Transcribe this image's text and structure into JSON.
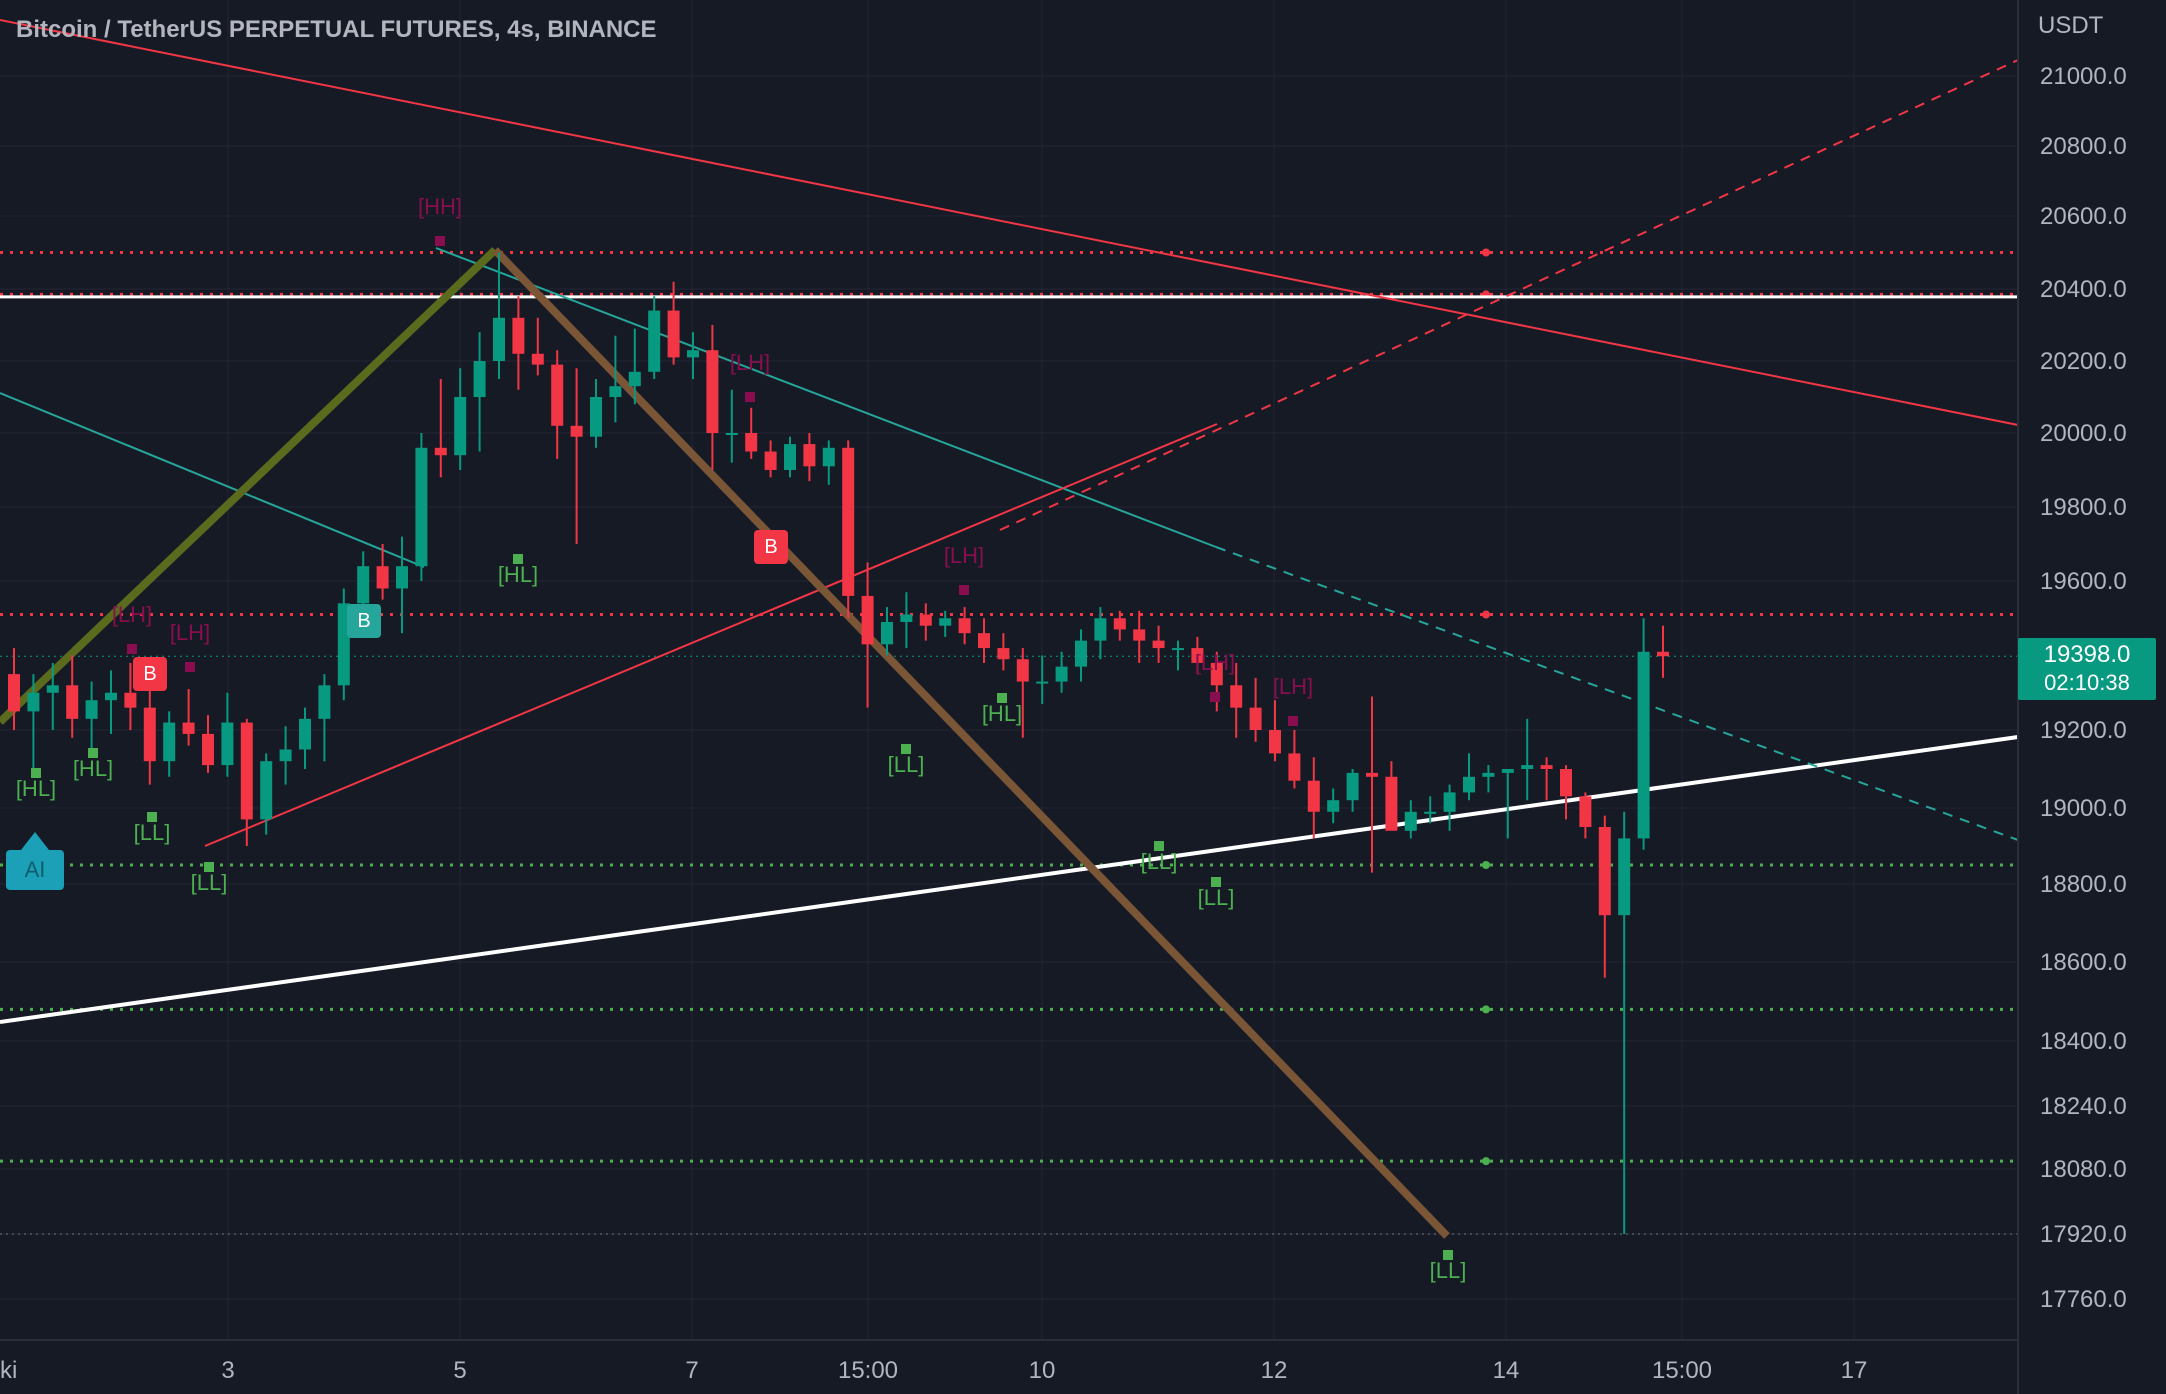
{
  "header": {
    "title": "Bitcoin / TetherUS PERPETUAL FUTURES, 4s, BINANCE",
    "unit": "USDT"
  },
  "price_tag": {
    "price": "19398.0",
    "countdown": "02:10:38"
  },
  "ai_badge": {
    "label": "AI"
  },
  "signals": [
    {
      "label": "B",
      "color": "#f23645"
    },
    {
      "label": "B",
      "color": "#f23645"
    },
    {
      "label": "B",
      "color": "#26a69a"
    }
  ],
  "colors": {
    "up": "#089981",
    "down": "#f23645",
    "background": "#161a25",
    "grid": "#242733",
    "text": "#b2b5be"
  },
  "chart_data": {
    "type": "candlestick",
    "title": "Bitcoin / TetherUS PERPETUAL FUTURES, 4s, BINANCE",
    "y_axis": {
      "label": "USDT",
      "ticks": [
        "21000.0",
        "20800.0",
        "20600.0",
        "20400.0",
        "20200.0",
        "20000.0",
        "19800.0",
        "19600.0",
        "19200.0",
        "19000.0",
        "18800.0",
        "18600.0",
        "18400.0",
        "18240.0",
        "18080.0",
        "17920.0",
        "17760.0"
      ]
    },
    "x_axis": {
      "ticks": [
        "ki",
        "3",
        "5",
        "7",
        "15:00",
        "10",
        "12",
        "14",
        "15:00",
        "17"
      ]
    },
    "last_price": 19398.0,
    "horizontal_levels": [
      {
        "value": 20500,
        "color": "#f23645",
        "style": "dotted"
      },
      {
        "value": 20385,
        "color": "#f23645",
        "style": "dotted"
      },
      {
        "value": 20378,
        "color": "#ffffff",
        "style": "solid"
      },
      {
        "value": 19510,
        "color": "#f23645",
        "style": "dotted"
      },
      {
        "value": 18850,
        "color": "#4caf50",
        "style": "dotted"
      },
      {
        "value": 18480,
        "color": "#4caf50",
        "style": "dotted"
      },
      {
        "value": 18100,
        "color": "#4caf50",
        "style": "dotted"
      }
    ],
    "pivot_labels": [
      {
        "text": "[HH]",
        "kind": "high"
      },
      {
        "text": "[LH]",
        "kind": "high"
      },
      {
        "text": "[LH]",
        "kind": "high"
      },
      {
        "text": "[LH]",
        "kind": "high"
      },
      {
        "text": "[LH]",
        "kind": "high"
      },
      {
        "text": "[LH]",
        "kind": "high"
      },
      {
        "text": "[LH]",
        "kind": "high"
      },
      {
        "text": "[HL]",
        "kind": "low"
      },
      {
        "text": "[HL]",
        "kind": "low"
      },
      {
        "text": "[HL]",
        "kind": "low"
      },
      {
        "text": "[HL]",
        "kind": "low"
      },
      {
        "text": "[LL]",
        "kind": "low"
      },
      {
        "text": "[LL]",
        "kind": "low"
      },
      {
        "text": "[LL]",
        "kind": "low"
      },
      {
        "text": "[LL]",
        "kind": "low"
      },
      {
        "text": "[LL]",
        "kind": "low"
      },
      {
        "text": "[LL]",
        "kind": "low"
      }
    ],
    "candles": [
      {
        "o": 19350,
        "h": 19420,
        "l": 19200,
        "c": 19250
      },
      {
        "o": 19250,
        "h": 19350,
        "l": 19080,
        "c": 19300
      },
      {
        "o": 19300,
        "h": 19380,
        "l": 19200,
        "c": 19320
      },
      {
        "o": 19320,
        "h": 19400,
        "l": 19180,
        "c": 19230
      },
      {
        "o": 19230,
        "h": 19330,
        "l": 19150,
        "c": 19280
      },
      {
        "o": 19280,
        "h": 19360,
        "l": 19190,
        "c": 19300
      },
      {
        "o": 19300,
        "h": 19380,
        "l": 19200,
        "c": 19260
      },
      {
        "o": 19260,
        "h": 19350,
        "l": 19060,
        "c": 19120
      },
      {
        "o": 19120,
        "h": 19250,
        "l": 19080,
        "c": 19220
      },
      {
        "o": 19220,
        "h": 19310,
        "l": 19160,
        "c": 19190
      },
      {
        "o": 19190,
        "h": 19240,
        "l": 19090,
        "c": 19110
      },
      {
        "o": 19110,
        "h": 19300,
        "l": 19080,
        "c": 19220
      },
      {
        "o": 19220,
        "h": 19230,
        "l": 18900,
        "c": 18970
      },
      {
        "o": 18970,
        "h": 19140,
        "l": 18930,
        "c": 19120
      },
      {
        "o": 19120,
        "h": 19210,
        "l": 19060,
        "c": 19150
      },
      {
        "o": 19150,
        "h": 19260,
        "l": 19100,
        "c": 19230
      },
      {
        "o": 19230,
        "h": 19350,
        "l": 19120,
        "c": 19320
      },
      {
        "o": 19320,
        "h": 19580,
        "l": 19280,
        "c": 19540
      },
      {
        "o": 19540,
        "h": 19680,
        "l": 19500,
        "c": 19640
      },
      {
        "o": 19640,
        "h": 19700,
        "l": 19550,
        "c": 19580
      },
      {
        "o": 19580,
        "h": 19720,
        "l": 19460,
        "c": 19640
      },
      {
        "o": 19640,
        "h": 20000,
        "l": 19600,
        "c": 19960
      },
      {
        "o": 19960,
        "h": 20150,
        "l": 19880,
        "c": 19940
      },
      {
        "o": 19940,
        "h": 20180,
        "l": 19900,
        "c": 20100
      },
      {
        "o": 20100,
        "h": 20280,
        "l": 19950,
        "c": 20200
      },
      {
        "o": 20200,
        "h": 20500,
        "l": 20150,
        "c": 20320
      },
      {
        "o": 20320,
        "h": 20380,
        "l": 20120,
        "c": 20220
      },
      {
        "o": 20220,
        "h": 20320,
        "l": 20160,
        "c": 20190
      },
      {
        "o": 20190,
        "h": 20230,
        "l": 19930,
        "c": 20020
      },
      {
        "o": 20020,
        "h": 20180,
        "l": 19700,
        "c": 19990
      },
      {
        "o": 19990,
        "h": 20150,
        "l": 19960,
        "c": 20100
      },
      {
        "o": 20100,
        "h": 20270,
        "l": 20030,
        "c": 20130
      },
      {
        "o": 20130,
        "h": 20290,
        "l": 20080,
        "c": 20170
      },
      {
        "o": 20170,
        "h": 20380,
        "l": 20150,
        "c": 20340
      },
      {
        "o": 20340,
        "h": 20420,
        "l": 20190,
        "c": 20210
      },
      {
        "o": 20210,
        "h": 20280,
        "l": 20150,
        "c": 20230
      },
      {
        "o": 20230,
        "h": 20300,
        "l": 19900,
        "c": 20000
      },
      {
        "o": 20000,
        "h": 20120,
        "l": 19920,
        "c": 20000
      },
      {
        "o": 20000,
        "h": 20070,
        "l": 19930,
        "c": 19950
      },
      {
        "o": 19950,
        "h": 19980,
        "l": 19880,
        "c": 19900
      },
      {
        "o": 19900,
        "h": 19990,
        "l": 19880,
        "c": 19970
      },
      {
        "o": 19970,
        "h": 20000,
        "l": 19870,
        "c": 19910
      },
      {
        "o": 19910,
        "h": 19980,
        "l": 19860,
        "c": 19960
      },
      {
        "o": 19960,
        "h": 19980,
        "l": 19500,
        "c": 19560
      },
      {
        "o": 19560,
        "h": 19650,
        "l": 19260,
        "c": 19430
      },
      {
        "o": 19430,
        "h": 19530,
        "l": 19400,
        "c": 19490
      },
      {
        "o": 19490,
        "h": 19570,
        "l": 19420,
        "c": 19510
      },
      {
        "o": 19510,
        "h": 19540,
        "l": 19440,
        "c": 19480
      },
      {
        "o": 19480,
        "h": 19520,
        "l": 19450,
        "c": 19500
      },
      {
        "o": 19500,
        "h": 19530,
        "l": 19430,
        "c": 19460
      },
      {
        "o": 19460,
        "h": 19500,
        "l": 19380,
        "c": 19420
      },
      {
        "o": 19420,
        "h": 19460,
        "l": 19360,
        "c": 19390
      },
      {
        "o": 19390,
        "h": 19420,
        "l": 19180,
        "c": 19330
      },
      {
        "o": 19330,
        "h": 19400,
        "l": 19270,
        "c": 19330
      },
      {
        "o": 19330,
        "h": 19410,
        "l": 19300,
        "c": 19370
      },
      {
        "o": 19370,
        "h": 19470,
        "l": 19330,
        "c": 19440
      },
      {
        "o": 19440,
        "h": 19530,
        "l": 19390,
        "c": 19500
      },
      {
        "o": 19500,
        "h": 19520,
        "l": 19440,
        "c": 19470
      },
      {
        "o": 19470,
        "h": 19520,
        "l": 19380,
        "c": 19440
      },
      {
        "o": 19440,
        "h": 19480,
        "l": 19380,
        "c": 19420
      },
      {
        "o": 19420,
        "h": 19440,
        "l": 19360,
        "c": 19420
      },
      {
        "o": 19420,
        "h": 19450,
        "l": 19350,
        "c": 19380
      },
      {
        "o": 19380,
        "h": 19410,
        "l": 19250,
        "c": 19320
      },
      {
        "o": 19320,
        "h": 19380,
        "l": 19180,
        "c": 19260
      },
      {
        "o": 19260,
        "h": 19340,
        "l": 19170,
        "c": 19200
      },
      {
        "o": 19200,
        "h": 19280,
        "l": 19120,
        "c": 19140
      },
      {
        "o": 19140,
        "h": 19200,
        "l": 19050,
        "c": 19070
      },
      {
        "o": 19070,
        "h": 19130,
        "l": 18920,
        "c": 18990
      },
      {
        "o": 18990,
        "h": 19050,
        "l": 18960,
        "c": 19020
      },
      {
        "o": 19020,
        "h": 19100,
        "l": 18990,
        "c": 19090
      },
      {
        "o": 19090,
        "h": 19290,
        "l": 18830,
        "c": 19080
      },
      {
        "o": 19080,
        "h": 19120,
        "l": 18950,
        "c": 18940
      },
      {
        "o": 18940,
        "h": 19020,
        "l": 18920,
        "c": 18990
      },
      {
        "o": 18990,
        "h": 19030,
        "l": 18960,
        "c": 18990
      },
      {
        "o": 18990,
        "h": 19060,
        "l": 18940,
        "c": 19040
      },
      {
        "o": 19040,
        "h": 19140,
        "l": 19020,
        "c": 19080
      },
      {
        "o": 19080,
        "h": 19110,
        "l": 19040,
        "c": 19090
      },
      {
        "o": 19090,
        "h": 19100,
        "l": 18920,
        "c": 19100
      },
      {
        "o": 19100,
        "h": 19230,
        "l": 19020,
        "c": 19110
      },
      {
        "o": 19110,
        "h": 19130,
        "l": 19020,
        "c": 19100
      },
      {
        "o": 19100,
        "h": 19110,
        "l": 18970,
        "c": 19030
      },
      {
        "o": 19030,
        "h": 19040,
        "l": 18920,
        "c": 18950
      },
      {
        "o": 18950,
        "h": 18980,
        "l": 18560,
        "c": 18720
      },
      {
        "o": 18720,
        "h": 18990,
        "l": 17920,
        "c": 18920
      },
      {
        "o": 18920,
        "h": 19500,
        "l": 18890,
        "c": 19410
      },
      {
        "o": 19410,
        "h": 19480,
        "l": 19340,
        "c": 19398
      }
    ]
  }
}
